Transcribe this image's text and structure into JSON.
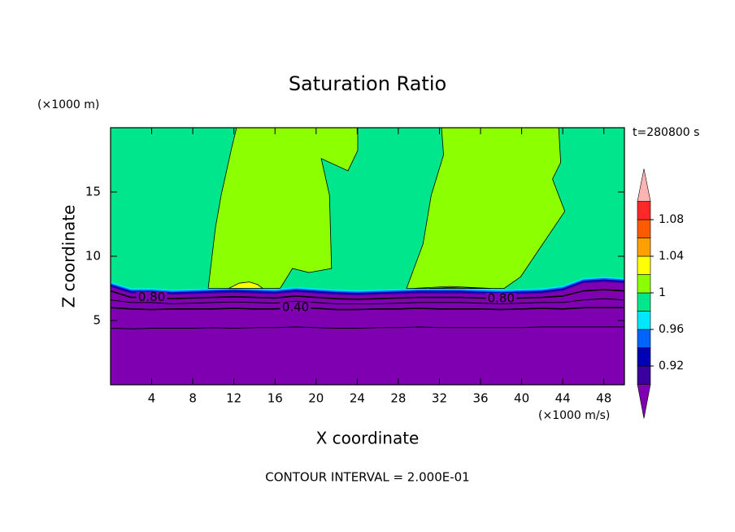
{
  "chart_data": {
    "type": "contour",
    "title": "Saturation Ratio",
    "y_unit": "(×1000 m)",
    "x_unit": "(×1000 m/s)",
    "time_label": "t=280800 s",
    "xlabel": "X coordinate",
    "ylabel": "Z coordinate",
    "footer": "CONTOUR INTERVAL = 2.000E-01",
    "xlim": [
      0,
      50
    ],
    "ylim": [
      0,
      20
    ],
    "xticks": [
      4,
      8,
      12,
      16,
      20,
      24,
      28,
      32,
      36,
      40,
      44,
      48
    ],
    "yticks": [
      5,
      10,
      15
    ],
    "colorbar": {
      "levels": [
        0.9,
        0.92,
        0.94,
        0.96,
        0.98,
        1,
        1.02,
        1.04,
        1.06,
        1.08,
        1.1
      ],
      "colors": [
        "#7f00b0",
        "#3c00a0",
        "#0000b4",
        "#0064ff",
        "#00e6ff",
        "#00e68c",
        "#8cff00",
        "#ffff00",
        "#ffa000",
        "#ff5a00",
        "#ff2828",
        "#ffb4b4"
      ],
      "ticks": [
        0.92,
        0.96,
        1,
        1.04,
        1.08
      ]
    },
    "x": [
      0,
      2,
      4,
      6,
      8,
      10,
      12,
      14,
      16,
      18,
      20,
      22,
      24,
      26,
      28,
      30,
      32,
      34,
      36,
      38,
      40,
      42,
      44,
      46,
      48,
      50
    ],
    "edges": [
      {
        "level": 0.9,
        "z": [
          7.6,
          7.1,
          7.1,
          7.0,
          7.05,
          7.1,
          7.15,
          7.1,
          7.05,
          7.2,
          7.1,
          7.0,
          6.95,
          7.0,
          7.05,
          7.1,
          7.1,
          7.1,
          7.05,
          7.0,
          7.05,
          7.1,
          7.3,
          7.9,
          8.0,
          7.9
        ]
      },
      {
        "level": 0.92,
        "z": [
          7.7,
          7.2,
          7.2,
          7.1,
          7.15,
          7.2,
          7.25,
          7.2,
          7.15,
          7.3,
          7.2,
          7.1,
          7.05,
          7.1,
          7.15,
          7.2,
          7.2,
          7.2,
          7.15,
          7.1,
          7.15,
          7.2,
          7.4,
          8.0,
          8.1,
          8.0
        ]
      },
      {
        "level": 0.94,
        "z": [
          7.8,
          7.3,
          7.3,
          7.2,
          7.25,
          7.3,
          7.35,
          7.3,
          7.25,
          7.4,
          7.3,
          7.2,
          7.15,
          7.2,
          7.25,
          7.3,
          7.3,
          7.3,
          7.25,
          7.2,
          7.25,
          7.3,
          7.5,
          8.1,
          8.2,
          8.1
        ]
      },
      {
        "level": 0.96,
        "z": [
          7.9,
          7.4,
          7.4,
          7.3,
          7.35,
          7.4,
          7.45,
          7.4,
          7.35,
          7.5,
          7.4,
          7.3,
          7.25,
          7.3,
          7.35,
          7.4,
          7.4,
          7.4,
          7.35,
          7.3,
          7.35,
          7.4,
          7.6,
          8.2,
          8.3,
          8.2
        ]
      },
      {
        "level": 0.98,
        "z": [
          8.0,
          7.5,
          7.5,
          7.4,
          7.45,
          7.5,
          7.55,
          7.5,
          7.45,
          7.6,
          7.5,
          7.4,
          7.35,
          7.4,
          7.45,
          7.5,
          7.5,
          7.5,
          7.45,
          7.4,
          7.45,
          7.5,
          7.7,
          8.3,
          8.4,
          8.3
        ]
      }
    ],
    "regions": [
      {
        "min": 1,
        "x": [
          12.26,
          24.05,
          24.05,
          23.1,
          20.5,
          21.3,
          21.5,
          19.3,
          17.7,
          16.5,
          9.5,
          10.2,
          10.76,
          11.8
        ],
        "z": [
          20,
          20,
          18.23,
          16.65,
          17.6,
          14.75,
          9.05,
          8.73,
          9.05,
          7.5,
          7.5,
          12.2,
          14.75,
          18.5
        ]
      },
      {
        "min": 1,
        "x": [
          32.2,
          43.6,
          43.8,
          43.0,
          44.2,
          41.5,
          39.9,
          38.3,
          28.8,
          30.4,
          31.2,
          32.4
        ],
        "z": [
          20,
          20,
          17.3,
          16.0,
          13.5,
          10.3,
          8.4,
          7.5,
          7.5,
          10.95,
          14.75,
          17.9
        ]
      },
      {
        "min": 1.02,
        "x": [
          11.5,
          12.5,
          13.5,
          14.3,
          14.8
        ],
        "z": [
          7.5,
          7.9,
          8.0,
          7.8,
          7.5
        ]
      },
      {
        "min": 1.02,
        "x": [
          29.5,
          33,
          37
        ],
        "z": [
          7.5,
          7.65,
          7.5
        ]
      },
      {
        "min": 1.04,
        "x": [
          31,
          34,
          36
        ],
        "z": [
          7.5,
          7.6,
          7.5
        ]
      }
    ],
    "lines": [
      {
        "level": 0.8,
        "label": "0.80",
        "label_x": [
          4,
          38
        ],
        "z": [
          7.3,
          6.8,
          6.8,
          6.7,
          6.75,
          6.8,
          6.85,
          6.8,
          6.75,
          6.9,
          6.8,
          6.7,
          6.65,
          6.7,
          6.75,
          6.8,
          6.8,
          6.8,
          6.75,
          6.7,
          6.75,
          6.8,
          6.9,
          7.3,
          7.4,
          7.3
        ]
      },
      {
        "level": 0.6,
        "z": [
          6.6,
          6.4,
          6.4,
          6.3,
          6.35,
          6.4,
          6.45,
          6.4,
          6.35,
          6.5,
          6.4,
          6.3,
          6.3,
          6.3,
          6.35,
          6.4,
          6.4,
          6.4,
          6.35,
          6.3,
          6.35,
          6.4,
          6.4,
          6.6,
          6.7,
          6.6
        ]
      },
      {
        "level": 0.4,
        "label": "0.40",
        "label_x": [
          18
        ],
        "z": [
          6.0,
          5.9,
          5.85,
          5.9,
          5.9,
          5.9,
          5.95,
          5.9,
          5.9,
          6.0,
          5.95,
          5.85,
          5.85,
          5.9,
          5.9,
          5.95,
          5.9,
          5.9,
          5.9,
          5.85,
          5.9,
          5.95,
          5.9,
          6.0,
          6.0,
          6.0
        ]
      },
      {
        "level": 0.2,
        "z": [
          4.4,
          4.35,
          4.4,
          4.4,
          4.4,
          4.45,
          4.4,
          4.45,
          4.45,
          4.5,
          4.45,
          4.4,
          4.4,
          4.45,
          4.45,
          4.5,
          4.45,
          4.45,
          4.45,
          4.45,
          4.45,
          4.5,
          4.5,
          4.5,
          4.5,
          4.5
        ]
      }
    ]
  }
}
